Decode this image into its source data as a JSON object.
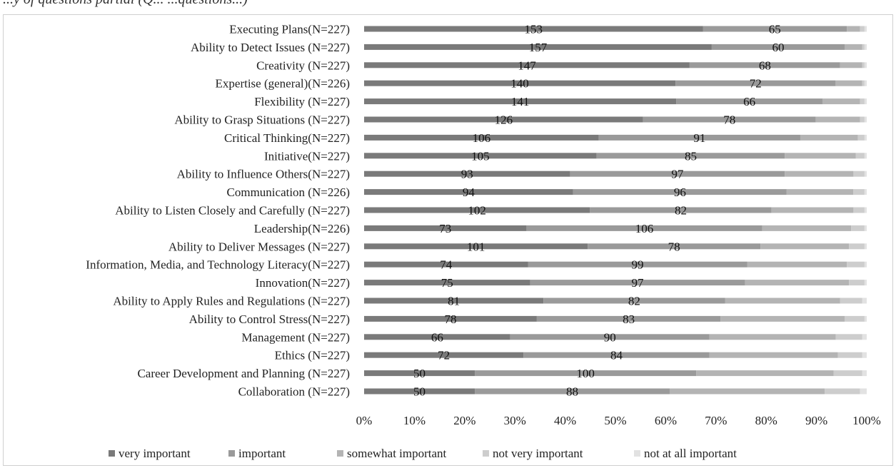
{
  "caption": "...y of questions partial (Q... ...questions...)",
  "chart_data": {
    "type": "bar",
    "orientation": "horizontal",
    "stacked": "percent",
    "title": "",
    "xlabel": "",
    "ylabel": "",
    "xlim": [
      0,
      100
    ],
    "x_ticks": [
      "0%",
      "10%",
      "20%",
      "30%",
      "40%",
      "50%",
      "60%",
      "70%",
      "80%",
      "90%",
      "100%"
    ],
    "legend_position": "bottom",
    "categories": [
      "Executing Plans(N=227)",
      "Ability to Detect Issues (N=227)",
      "Creativity (N=227)",
      "Expertise (general)(N=226)",
      "Flexibility (N=227)",
      "Ability to Grasp Situations  (N=227)",
      "Critical Thinking(N=227)",
      "Initiative(N=227)",
      "Ability to Influence Others(N=227)",
      "Communication (N=226)",
      "Ability to Listen Closely and Carefully  (N=227)",
      "Leadership(N=226)",
      "Ability to Deliver Messages  (N=227)",
      "Information, Media, and Technology Literacy(N=227)",
      "Innovation(N=227)",
      "Ability to Apply Rules and Regulations  (N=227)",
      "Ability to Control Stress(N=227)",
      "Management (N=227)",
      "Ethics (N=227)",
      "Career Development and Planning (N=227)",
      "Collaboration (N=227)"
    ],
    "totals": [
      227,
      227,
      227,
      226,
      227,
      227,
      227,
      227,
      227,
      226,
      227,
      226,
      227,
      227,
      227,
      227,
      227,
      227,
      227,
      227,
      227
    ],
    "series": [
      {
        "name": "very important",
        "color": "#7a7a7a",
        "values": [
          153,
          157,
          147,
          140,
          141,
          126,
          106,
          105,
          93,
          94,
          102,
          73,
          101,
          74,
          75,
          81,
          78,
          66,
          72,
          50,
          50
        ]
      },
      {
        "name": "important",
        "color": "#9a9a9a",
        "values": [
          65,
          60,
          68,
          72,
          66,
          78,
          91,
          85,
          97,
          96,
          82,
          106,
          78,
          99,
          97,
          82,
          83,
          90,
          84,
          100,
          88
        ]
      },
      {
        "name": "somewhat important",
        "color": "#b4b4b4",
        "values": [
          6,
          8,
          10,
          12,
          17,
          20,
          26,
          32,
          31,
          30,
          37,
          40,
          40,
          45,
          47,
          52,
          56,
          57,
          58,
          62,
          70
        ]
      },
      {
        "name": "not very important",
        "color": "#cdcdcd",
        "values": [
          2,
          1,
          1,
          1,
          2,
          2,
          3,
          4,
          5,
          5,
          5,
          6,
          7,
          8,
          7,
          10,
          9,
          12,
          11,
          13,
          16
        ]
      },
      {
        "name": "not at all important",
        "color": "#e2e2e2",
        "values": [
          1,
          1,
          1,
          1,
          1,
          1,
          1,
          1,
          1,
          1,
          1,
          1,
          1,
          1,
          1,
          2,
          1,
          2,
          2,
          2,
          3
        ]
      }
    ],
    "data_labels": [
      {
        "series": 0,
        "labels": [
          "153",
          "157",
          "147",
          "140",
          "141",
          "126",
          "106",
          "105",
          "93",
          "94",
          "102",
          "73",
          "101",
          "74",
          "75",
          "81",
          "78",
          "66",
          "72",
          "50",
          "50"
        ]
      },
      {
        "series": 1,
        "labels": [
          "65",
          "60",
          "68",
          "72",
          "66",
          "78",
          "91",
          "85",
          "97",
          "96",
          "82",
          "106",
          "78",
          "99",
          "97",
          "82",
          "83",
          "90",
          "84",
          "100",
          "88"
        ]
      }
    ]
  }
}
